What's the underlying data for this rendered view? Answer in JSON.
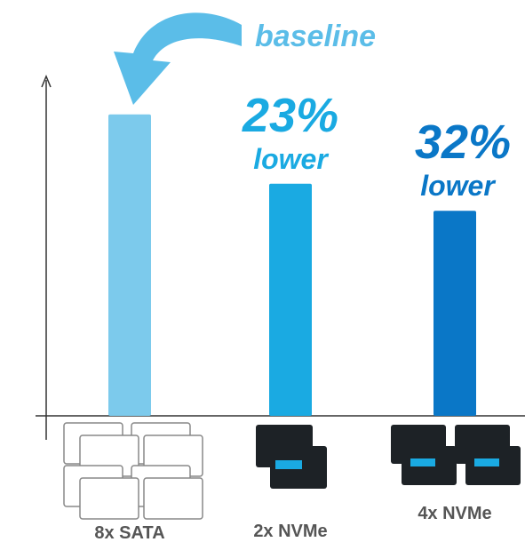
{
  "chart_data": {
    "type": "bar",
    "categories": [
      "8x SATA",
      "2x NVMe",
      "4x NVMe"
    ],
    "values": [
      100,
      77,
      68
    ],
    "colors": [
      "#7ccaec",
      "#1aaae2",
      "#0a77c7"
    ],
    "ylim": [
      0,
      112
    ],
    "annotations": [
      "baseline",
      "23%",
      "lower",
      "32%",
      "lower"
    ]
  }
}
